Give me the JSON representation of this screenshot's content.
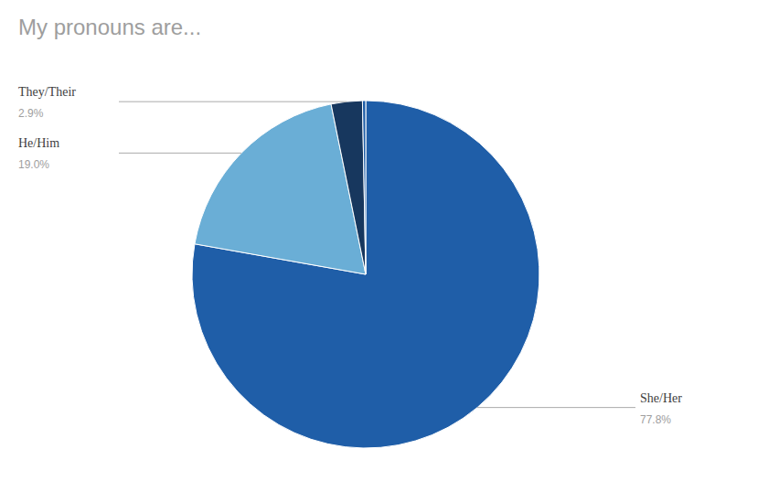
{
  "chart_data": {
    "type": "pie",
    "title": "My pronouns are...",
    "categories": [
      "She/Her",
      "He/Him",
      "They/Their",
      null
    ],
    "values": [
      77.8,
      19.0,
      2.9,
      0.3
    ],
    "value_labels": [
      "77.8%",
      "19.0%",
      "2.9%",
      null
    ],
    "colors": [
      "#1f5ea8",
      "#6aaed6",
      "#17375e",
      "#1f5ea8"
    ]
  }
}
